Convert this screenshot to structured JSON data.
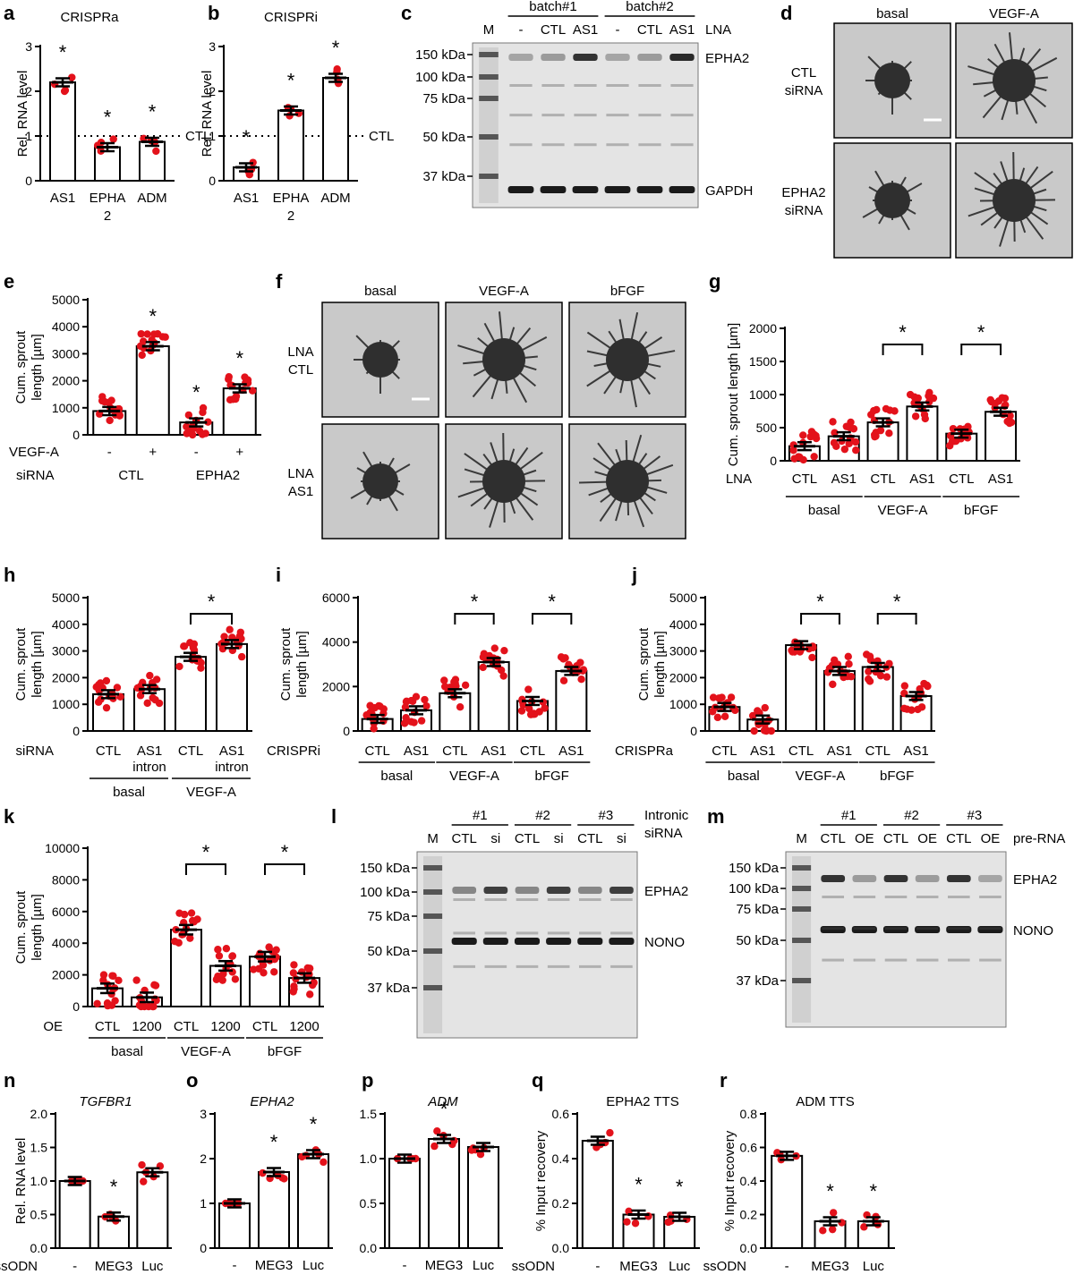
{
  "figure": {
    "panel_letters": [
      "a",
      "b",
      "c",
      "d",
      "e",
      "f",
      "g",
      "h",
      "i",
      "j",
      "k",
      "l",
      "m",
      "n",
      "o",
      "p",
      "q",
      "r"
    ]
  },
  "blots": {
    "c": {
      "lanes": [
        "M",
        "-",
        "CTL",
        "AS1",
        "-",
        "CTL",
        "AS1"
      ],
      "groups": [
        "batch#1",
        "batch#2"
      ],
      "condition": "LNA",
      "markers": [
        "150 kDa",
        "100 kDa",
        "75 kDa",
        "50 kDa",
        "37 kDa"
      ],
      "bands": [
        "EPHA2",
        "GAPDH"
      ]
    },
    "l": {
      "lanes": [
        "M",
        "CTL",
        "si",
        "CTL",
        "si",
        "CTL",
        "si"
      ],
      "groups": [
        "#1",
        "#2",
        "#3"
      ],
      "condition": "Intronic siRNA",
      "condition_lines": [
        "Intronic",
        "siRNA"
      ],
      "markers": [
        "150 kDa",
        "100 kDa",
        "75 kDa",
        "50 kDa",
        "37 kDa"
      ],
      "bands": [
        "EPHA2",
        "NONO"
      ]
    },
    "m": {
      "lanes": [
        "M",
        "CTL",
        "OE",
        "CTL",
        "OE",
        "CTL",
        "OE"
      ],
      "groups": [
        "#1",
        "#2",
        "#3"
      ],
      "condition": "pre-RNA",
      "markers": [
        "150 kDa",
        "100 kDa",
        "75 kDa",
        "50 kDa",
        "37 kDa"
      ],
      "bands": [
        "EPHA2",
        "NONO"
      ]
    }
  },
  "micrographs": {
    "d": {
      "cols": [
        "basal",
        "VEGF-A"
      ],
      "rows": [
        "CTL siRNA",
        "EPHA2 siRNA"
      ]
    },
    "f": {
      "cols": [
        "basal",
        "VEGF-A",
        "bFGF"
      ],
      "rows": [
        "LNA CTL",
        "LNA AS1"
      ]
    }
  },
  "chart_data": [
    {
      "id": "a",
      "type": "bar",
      "title": "CRISPRa",
      "ylabel": "Rel. RNA level",
      "ylim": [
        0,
        3
      ],
      "yticks": [
        0,
        1,
        2,
        3
      ],
      "categories": [
        "AS1",
        "EPHA 2",
        "ADM"
      ],
      "values": [
        2.2,
        0.75,
        0.87
      ],
      "sig": [
        true,
        true,
        true
      ],
      "ref_line": {
        "y": 1,
        "label": "CTL"
      }
    },
    {
      "id": "b",
      "type": "bar",
      "title": "CRISPRi",
      "ylabel": "Rel. RNA level",
      "ylim": [
        0,
        3
      ],
      "yticks": [
        0,
        1,
        2,
        3
      ],
      "categories": [
        "AS1",
        "EPHA 2",
        "ADM"
      ],
      "values": [
        0.3,
        1.57,
        2.3
      ],
      "sig": [
        true,
        true,
        true
      ],
      "ref_line": {
        "y": 1,
        "label": "CTL"
      }
    },
    {
      "id": "e",
      "type": "bar",
      "ylabel": "Cum. sprout length [µm]",
      "ylim": [
        0,
        5000
      ],
      "yticks": [
        0,
        1000,
        2000,
        3000,
        4000,
        5000
      ],
      "categories": [
        "-",
        "+",
        "-",
        "+"
      ],
      "values": [
        880,
        3280,
        460,
        1720
      ],
      "sig": [
        false,
        true,
        true,
        true
      ],
      "rows": [
        {
          "name": "VEGF-A",
          "labels": [
            "-",
            "+",
            "-",
            "+"
          ]
        },
        {
          "name": "siRNA",
          "labels": [
            "CTL",
            "EPHA2"
          ]
        }
      ]
    },
    {
      "id": "g",
      "type": "bar",
      "ylabel": "Cum. sprout length [µm]",
      "ylim": [
        0,
        2000
      ],
      "yticks": [
        0,
        500,
        1000,
        1500,
        2000
      ],
      "row_label": "LNA",
      "categories": [
        "CTL",
        "AS1",
        "CTL",
        "AS1",
        "CTL",
        "AS1"
      ],
      "values": [
        220,
        370,
        580,
        820,
        410,
        740
      ],
      "groups": [
        "basal",
        "VEGF-A",
        "bFGF"
      ],
      "brackets": [
        [
          2,
          3
        ],
        [
          4,
          5
        ]
      ]
    },
    {
      "id": "h",
      "type": "bar",
      "ylabel": "Cum. sprout length [µm]",
      "ylim": [
        0,
        5000
      ],
      "yticks": [
        0,
        1000,
        2000,
        3000,
        4000,
        5000
      ],
      "row_label": "siRNA",
      "categories": [
        "CTL",
        "AS1 intron",
        "CTL",
        "AS1 intron"
      ],
      "values": [
        1380,
        1570,
        2780,
        3260
      ],
      "groups": [
        "basal",
        "VEGF-A"
      ],
      "brackets": [
        [
          2,
          3
        ]
      ]
    },
    {
      "id": "i",
      "type": "bar",
      "ylabel": "Cum. sprout length [µm]",
      "ylim": [
        0,
        6000
      ],
      "yticks": [
        0,
        2000,
        4000,
        6000
      ],
      "row_label": "CRISPRi",
      "categories": [
        "CTL",
        "AS1",
        "CTL",
        "AS1",
        "CTL",
        "AS1"
      ],
      "values": [
        540,
        930,
        1700,
        3100,
        1350,
        2700
      ],
      "groups": [
        "basal",
        "VEGF-A",
        "bFGF"
      ],
      "brackets": [
        [
          2,
          3
        ],
        [
          4,
          5
        ]
      ]
    },
    {
      "id": "j",
      "type": "bar",
      "ylabel": "Cum. sprout length [µm]",
      "ylim": [
        0,
        5000
      ],
      "yticks": [
        0,
        1000,
        2000,
        3000,
        4000,
        5000
      ],
      "row_label": "CRISPRa",
      "categories": [
        "CTL",
        "AS1",
        "CTL",
        "AS1",
        "CTL",
        "AS1"
      ],
      "values": [
        900,
        430,
        3220,
        2250,
        2400,
        1310
      ],
      "groups": [
        "basal",
        "VEGF-A",
        "bFGF"
      ],
      "brackets": [
        [
          2,
          3
        ],
        [
          4,
          5
        ]
      ]
    },
    {
      "id": "k",
      "type": "bar",
      "ylabel": "Cum. sprout length [µm]",
      "ylim": [
        0,
        10000
      ],
      "yticks": [
        0,
        2000,
        4000,
        6000,
        8000,
        10000
      ],
      "row_label": "OE",
      "categories": [
        "CTL",
        "1200",
        "CTL",
        "1200",
        "CTL",
        "1200"
      ],
      "values": [
        1150,
        580,
        4850,
        2570,
        3150,
        1800
      ],
      "groups": [
        "basal",
        "VEGF-A",
        "bFGF"
      ],
      "brackets": [
        [
          2,
          3
        ],
        [
          4,
          5
        ]
      ]
    },
    {
      "id": "n",
      "type": "bar",
      "title": "TGFBR1",
      "title_italic": true,
      "ylabel": "Rel. RNA level",
      "ylim": [
        0,
        2
      ],
      "yticks": [
        "0.0",
        "0.5",
        "1.0",
        "1.5",
        "2.0"
      ],
      "row_label": "ssODN",
      "categories": [
        "-",
        "MEG3",
        "Luc"
      ],
      "values": [
        1.0,
        0.47,
        1.13
      ],
      "sig": [
        false,
        true,
        false
      ]
    },
    {
      "id": "o",
      "type": "bar",
      "title": "EPHA2",
      "title_italic": true,
      "ylim": [
        0,
        3
      ],
      "yticks": [
        "0",
        "1",
        "2",
        "3"
      ],
      "categories": [
        "-",
        "MEG3",
        "Luc"
      ],
      "values": [
        1.0,
        1.7,
        2.1
      ],
      "sig": [
        false,
        true,
        true
      ]
    },
    {
      "id": "p",
      "type": "bar",
      "title": "ADM",
      "title_italic": true,
      "ylim": [
        0,
        1.5
      ],
      "yticks": [
        "0.0",
        "0.5",
        "1.0",
        "1.5"
      ],
      "categories": [
        "-",
        "MEG3",
        "Luc"
      ],
      "values": [
        1.0,
        1.22,
        1.13
      ],
      "sig": [
        false,
        true,
        false
      ]
    },
    {
      "id": "q",
      "type": "bar",
      "title": "EPHA2 TTS",
      "ylabel": "% Input recovery",
      "ylim": [
        0,
        0.6
      ],
      "yticks": [
        "0.0",
        "0.2",
        "0.4",
        "0.6"
      ],
      "row_label": "ssODN",
      "categories": [
        "-",
        "MEG3",
        "Luc"
      ],
      "values": [
        0.48,
        0.15,
        0.14
      ],
      "sig": [
        false,
        true,
        true
      ]
    },
    {
      "id": "r",
      "type": "bar",
      "title": "ADM TTS",
      "ylabel": "% Input recovery",
      "ylim": [
        0,
        0.8
      ],
      "yticks": [
        "0.0",
        "0.2",
        "0.4",
        "0.6",
        "0.8"
      ],
      "row_label": "ssODN",
      "categories": [
        "-",
        "MEG3",
        "Luc"
      ],
      "values": [
        0.55,
        0.16,
        0.16
      ],
      "sig": [
        false,
        true,
        true
      ]
    }
  ],
  "sig_mark": "*"
}
